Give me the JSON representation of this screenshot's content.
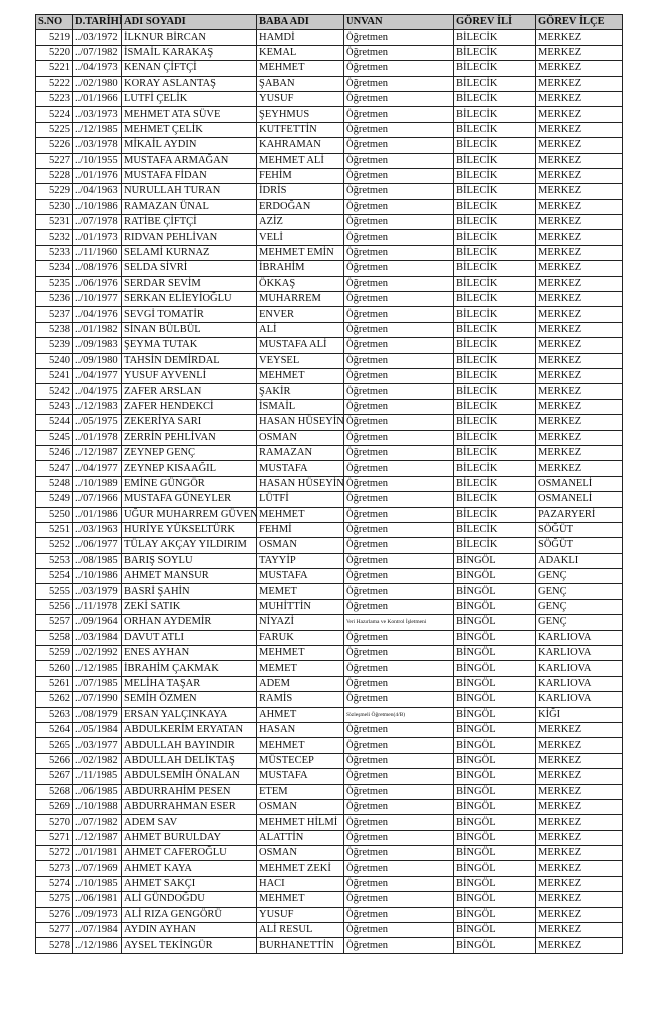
{
  "table": {
    "header": [
      "S.NO",
      "D.TARİHİ",
      "ADI SOYADI",
      "BABA ADI",
      "UNVAN",
      "GÖREV İLİ",
      "GÖREV İLÇE"
    ],
    "rows": [
      [
        "5219",
        "../03/1972",
        "İLKNUR BİRCAN",
        "HAMDİ",
        "Öğretmen",
        "BİLECİK",
        "MERKEZ"
      ],
      [
        "5220",
        "../07/1982",
        "İSMAİL KARAKAŞ",
        "KEMAL",
        "Öğretmen",
        "BİLECİK",
        "MERKEZ"
      ],
      [
        "5221",
        "../04/1973",
        "KENAN ÇİFTÇİ",
        "MEHMET",
        "Öğretmen",
        "BİLECİK",
        "MERKEZ"
      ],
      [
        "5222",
        "../02/1980",
        "KORAY ASLANTAŞ",
        "ŞABAN",
        "Öğretmen",
        "BİLECİK",
        "MERKEZ"
      ],
      [
        "5223",
        "../01/1966",
        "LUTFİ ÇELİK",
        "YUSUF",
        "Öğretmen",
        "BİLECİK",
        "MERKEZ"
      ],
      [
        "5224",
        "../03/1973",
        "MEHMET ATA SÜVE",
        "ŞEYHMUS",
        "Öğretmen",
        "BİLECİK",
        "MERKEZ"
      ],
      [
        "5225",
        "../12/1985",
        "MEHMET ÇELİK",
        "KUTFETTİN",
        "Öğretmen",
        "BİLECİK",
        "MERKEZ"
      ],
      [
        "5226",
        "../03/1978",
        "MİKAİL AYDIN",
        "KAHRAMAN",
        "Öğretmen",
        "BİLECİK",
        "MERKEZ"
      ],
      [
        "5227",
        "../10/1955",
        "MUSTAFA ARMAĞAN",
        "MEHMET ALİ",
        "Öğretmen",
        "BİLECİK",
        "MERKEZ"
      ],
      [
        "5228",
        "../01/1976",
        "MUSTAFA FİDAN",
        "FEHİM",
        "Öğretmen",
        "BİLECİK",
        "MERKEZ"
      ],
      [
        "5229",
        "../04/1963",
        "NURULLAH TURAN",
        "İDRİS",
        "Öğretmen",
        "BİLECİK",
        "MERKEZ"
      ],
      [
        "5230",
        "../10/1986",
        "RAMAZAN ÜNAL",
        "ERDOĞAN",
        "Öğretmen",
        "BİLECİK",
        "MERKEZ"
      ],
      [
        "5231",
        "../07/1978",
        "RATİBE ÇİFTÇİ",
        "AZİZ",
        "Öğretmen",
        "BİLECİK",
        "MERKEZ"
      ],
      [
        "5232",
        "../01/1973",
        "RIDVAN PEHLİVAN",
        "VELİ",
        "Öğretmen",
        "BİLECİK",
        "MERKEZ"
      ],
      [
        "5233",
        "../11/1960",
        "SELAMİ KURNAZ",
        "MEHMET EMİN",
        "Öğretmen",
        "BİLECİK",
        "MERKEZ"
      ],
      [
        "5234",
        "../08/1976",
        "SELDA SİVRİ",
        "İBRAHİM",
        "Öğretmen",
        "BİLECİK",
        "MERKEZ"
      ],
      [
        "5235",
        "../06/1976",
        "SERDAR SEVİM",
        "ÖKKAŞ",
        "Öğretmen",
        "BİLECİK",
        "MERKEZ"
      ],
      [
        "5236",
        "../10/1977",
        "SERKAN ELİEYİOĞLU",
        "MUHARREM",
        "Öğretmen",
        "BİLECİK",
        "MERKEZ"
      ],
      [
        "5237",
        "../04/1976",
        "SEVGİ TOMATİR",
        "ENVER",
        "Öğretmen",
        "BİLECİK",
        "MERKEZ"
      ],
      [
        "5238",
        "../01/1982",
        "SİNAN BÜLBÜL",
        "ALİ",
        "Öğretmen",
        "BİLECİK",
        "MERKEZ"
      ],
      [
        "5239",
        "../09/1983",
        "ŞEYMA TUTAK",
        "MUSTAFA ALİ",
        "Öğretmen",
        "BİLECİK",
        "MERKEZ"
      ],
      [
        "5240",
        "../09/1980",
        "TAHSİN DEMİRDAL",
        "VEYSEL",
        "Öğretmen",
        "BİLECİK",
        "MERKEZ"
      ],
      [
        "5241",
        "../04/1977",
        "YUSUF AYVENLİ",
        "MEHMET",
        "Öğretmen",
        "BİLECİK",
        "MERKEZ"
      ],
      [
        "5242",
        "../04/1975",
        "ZAFER ARSLAN",
        "ŞAKİR",
        "Öğretmen",
        "BİLECİK",
        "MERKEZ"
      ],
      [
        "5243",
        "../12/1983",
        "ZAFER HENDEKCİ",
        "İSMAİL",
        "Öğretmen",
        "BİLECİK",
        "MERKEZ"
      ],
      [
        "5244",
        "../05/1975",
        "ZEKERİYA SARI",
        "HASAN HÜSEYİN",
        "Öğretmen",
        "BİLECİK",
        "MERKEZ"
      ],
      [
        "5245",
        "../01/1978",
        "ZERRİN PEHLİVAN",
        "OSMAN",
        "Öğretmen",
        "BİLECİK",
        "MERKEZ"
      ],
      [
        "5246",
        "../12/1987",
        "ZEYNEP GENÇ",
        "RAMAZAN",
        "Öğretmen",
        "BİLECİK",
        "MERKEZ"
      ],
      [
        "5247",
        "../04/1977",
        "ZEYNEP KISAAĞIL",
        "MUSTAFA",
        "Öğretmen",
        "BİLECİK",
        "MERKEZ"
      ],
      [
        "5248",
        "../10/1989",
        "EMİNE GÜNGÖR",
        "HASAN HÜSEYİN",
        "Öğretmen",
        "BİLECİK",
        "OSMANELİ"
      ],
      [
        "5249",
        "../07/1966",
        "MUSTAFA GÜNEYLER",
        "LÜTFİ",
        "Öğretmen",
        "BİLECİK",
        "OSMANELİ"
      ],
      [
        "5250",
        "../01/1986",
        "UĞUR MUHARREM GÜVEN",
        "MEHMET",
        "Öğretmen",
        "BİLECİK",
        "PAZARYERİ"
      ],
      [
        "5251",
        "../03/1963",
        "HURİYE YÜKSELTÜRK",
        "FEHMİ",
        "Öğretmen",
        "BİLECİK",
        "SÖĞÜT"
      ],
      [
        "5252",
        "../06/1977",
        "TÜLAY AKÇAY YILDIRIM",
        "OSMAN",
        "Öğretmen",
        "BİLECİK",
        "SÖĞÜT"
      ],
      [
        "5253",
        "../08/1985",
        "BARIŞ SOYLU",
        "TAYYİP",
        "Öğretmen",
        "BİNGÖL",
        "ADAKLI"
      ],
      [
        "5254",
        "../10/1986",
        "AHMET MANSUR",
        "MUSTAFA",
        "Öğretmen",
        "BİNGÖL",
        "GENÇ"
      ],
      [
        "5255",
        "../03/1979",
        "BASRİ ŞAHİN",
        "MEMET",
        "Öğretmen",
        "BİNGÖL",
        "GENÇ"
      ],
      [
        "5256",
        "../11/1978",
        "ZEKİ SATIK",
        "MUHİTTİN",
        "Öğretmen",
        "BİNGÖL",
        "GENÇ"
      ],
      [
        "5257",
        "../09/1964",
        "ORHAN AYDEMİR",
        "NİYAZİ",
        "Veri Hazırlama ve Kontrol İşletmeni",
        "BİNGÖL",
        "GENÇ"
      ],
      [
        "5258",
        "../03/1984",
        "DAVUT ATLI",
        "FARUK",
        "Öğretmen",
        "BİNGÖL",
        "KARLIOVA"
      ],
      [
        "5259",
        "../02/1992",
        "ENES AYHAN",
        "MEHMET",
        "Öğretmen",
        "BİNGÖL",
        "KARLIOVA"
      ],
      [
        "5260",
        "../12/1985",
        "İBRAHİM ÇAKMAK",
        "MEMET",
        "Öğretmen",
        "BİNGÖL",
        "KARLIOVA"
      ],
      [
        "5261",
        "../07/1985",
        "MELİHA TAŞAR",
        "ADEM",
        "Öğretmen",
        "BİNGÖL",
        "KARLIOVA"
      ],
      [
        "5262",
        "../07/1990",
        "SEMİH ÖZMEN",
        "RAMİS",
        "Öğretmen",
        "BİNGÖL",
        "KARLIOVA"
      ],
      [
        "5263",
        "../08/1979",
        "ERSAN YALÇINKAYA",
        "AHMET",
        "Sözleşmeli Öğretmen(4/B)",
        "BİNGÖL",
        "KİĞI"
      ],
      [
        "5264",
        "../05/1984",
        "ABDULKERİM ERYATAN",
        "HASAN",
        "Öğretmen",
        "BİNGÖL",
        "MERKEZ"
      ],
      [
        "5265",
        "../03/1977",
        "ABDULLAH BAYINDIR",
        "MEHMET",
        "Öğretmen",
        "BİNGÖL",
        "MERKEZ"
      ],
      [
        "5266",
        "../02/1982",
        "ABDULLAH DELİKTAŞ",
        "MÜSTECEP",
        "Öğretmen",
        "BİNGÖL",
        "MERKEZ"
      ],
      [
        "5267",
        "../11/1985",
        "ABDULSEMİH ÖNALAN",
        "MUSTAFA",
        "Öğretmen",
        "BİNGÖL",
        "MERKEZ"
      ],
      [
        "5268",
        "../06/1985",
        "ABDURRAHİM PESEN",
        "ETEM",
        "Öğretmen",
        "BİNGÖL",
        "MERKEZ"
      ],
      [
        "5269",
        "../10/1988",
        "ABDURRAHMAN ESER",
        "OSMAN",
        "Öğretmen",
        "BİNGÖL",
        "MERKEZ"
      ],
      [
        "5270",
        "../07/1982",
        "ADEM SAV",
        "MEHMET HİLMİ",
        "Öğretmen",
        "BİNGÖL",
        "MERKEZ"
      ],
      [
        "5271",
        "../12/1987",
        "AHMET BURULDAY",
        "ALATTİN",
        "Öğretmen",
        "BİNGÖL",
        "MERKEZ"
      ],
      [
        "5272",
        "../01/1981",
        "AHMET CAFEROĞLU",
        "OSMAN",
        "Öğretmen",
        "BİNGÖL",
        "MERKEZ"
      ],
      [
        "5273",
        "../07/1969",
        "AHMET KAYA",
        "MEHMET ZEKİ",
        "Öğretmen",
        "BİNGÖL",
        "MERKEZ"
      ],
      [
        "5274",
        "../10/1985",
        "AHMET SAKÇI",
        "HACI",
        "Öğretmen",
        "BİNGÖL",
        "MERKEZ"
      ],
      [
        "5275",
        "../06/1981",
        "ALİ GÜNDOĞDU",
        "MEHMET",
        "Öğretmen",
        "BİNGÖL",
        "MERKEZ"
      ],
      [
        "5276",
        "../09/1973",
        "ALİ RIZA GENGÖRÜ",
        "YUSUF",
        "Öğretmen",
        "BİNGÖL",
        "MERKEZ"
      ],
      [
        "5277",
        "../07/1984",
        "AYDIN AYHAN",
        "ALİ RESUL",
        "Öğretmen",
        "BİNGÖL",
        "MERKEZ"
      ],
      [
        "5278",
        "../12/1986",
        "AYSEL TEKİNGÜR",
        "BURHANETTİN",
        "Öğretmen",
        "BİNGÖL",
        "MERKEZ"
      ]
    ]
  }
}
